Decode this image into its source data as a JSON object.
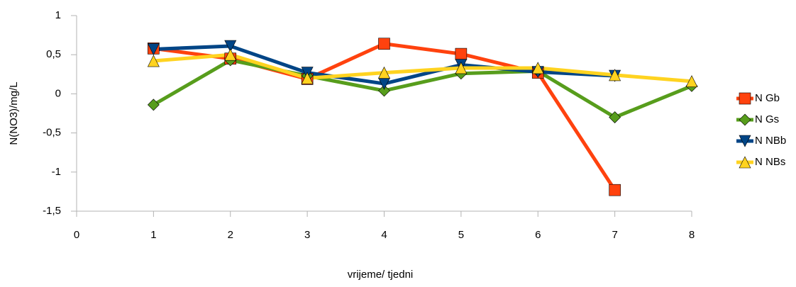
{
  "chart_data": {
    "type": "line",
    "x_label": "vrijeme/ tjedni",
    "y_label": "N(NO3)/mg/L",
    "x": [
      1,
      2,
      3,
      4,
      5,
      6,
      7,
      8
    ],
    "series": [
      {
        "name": "N Gb",
        "color": "#ff420e",
        "marker": "square",
        "values": [
          0.58,
          0.45,
          0.19,
          0.64,
          0.51,
          0.27,
          -1.23,
          null
        ]
      },
      {
        "name": "N Gs",
        "color": "#579d1c",
        "marker": "diamond",
        "values": [
          -0.14,
          0.43,
          0.23,
          0.04,
          0.26,
          0.29,
          -0.3,
          0.1
        ]
      },
      {
        "name": "N NBb",
        "color": "#004586",
        "marker": "triangle-down",
        "values": [
          0.57,
          0.61,
          0.27,
          0.13,
          0.37,
          0.28,
          0.23,
          null
        ]
      },
      {
        "name": "N NBs",
        "color": "#ffd320",
        "marker": "triangle-up",
        "values": [
          0.42,
          0.5,
          0.2,
          0.27,
          0.33,
          0.33,
          0.24,
          0.16
        ]
      }
    ],
    "xlim": [
      0,
      8
    ],
    "xticks": [
      0,
      1,
      2,
      3,
      4,
      5,
      6,
      7,
      8
    ],
    "ylim": [
      -1.5,
      1
    ],
    "yticks": [
      {
        "value": -1.5,
        "label": "-1,5"
      },
      {
        "value": -1,
        "label": "-1"
      },
      {
        "value": -0.5,
        "label": "-0,5"
      },
      0,
      {
        "value": 0.5,
        "label": "0,5"
      },
      1
    ],
    "grid": false,
    "legend": "right"
  }
}
